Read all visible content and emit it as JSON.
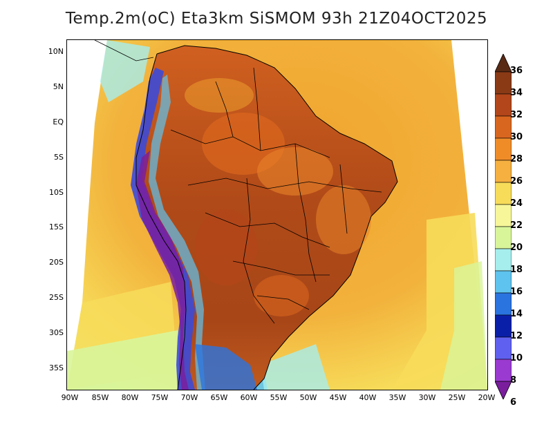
{
  "title": "Temp.2m(oC) Eta3km SiSMOM 93h 21Z04OCT2025",
  "lat_ticks": [
    "10N",
    "5N",
    "EQ",
    "5S",
    "10S",
    "15S",
    "20S",
    "25S",
    "30S",
    "35S"
  ],
  "lon_ticks": [
    "90W",
    "85W",
    "80W",
    "75W",
    "70W",
    "65W",
    "60W",
    "55W",
    "50W",
    "45W",
    "40W",
    "35W",
    "30W",
    "25W",
    "20W"
  ],
  "colorbar": {
    "labels": [
      "36",
      "34",
      "32",
      "30",
      "28",
      "26",
      "24",
      "22",
      "20",
      "18",
      "16",
      "14",
      "12",
      "10",
      "8",
      "6"
    ],
    "colors": [
      "#5a2a14",
      "#8b3a16",
      "#b3461a",
      "#d9661e",
      "#f08c28",
      "#f5b040",
      "#f7dc5a",
      "#f7f79a",
      "#d8f59a",
      "#a6eeee",
      "#5ec3ee",
      "#2a74e0",
      "#0a1fa8",
      "#6060f0",
      "#9a3ad0",
      "#7a1e9e"
    ]
  },
  "palette": {
    "ocean_far": "#f0b848",
    "ocean_warm": "#f0a42e",
    "ocean_cool": "#f7dc5a",
    "ocean_cold": "#d8f59a",
    "ocean_coast": "#5ec3ee",
    "land_hot": "#a84618",
    "land_warm": "#d9661e",
    "land_mid": "#e8842a",
    "andes_cold": "#3c4ad8",
    "andes_colder": "#7a1e9e"
  }
}
